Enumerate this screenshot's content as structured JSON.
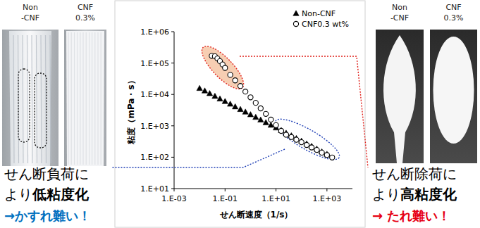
{
  "chart_data": {
    "type": "scatter",
    "xlabel": "せん断速度（1/s）",
    "ylabel": "粘度（mPa・s）",
    "log": true,
    "grid": false,
    "legend": "upper right",
    "xlim": [
      0.001,
      10000
    ],
    "ylim": [
      10,
      1000000
    ],
    "xticks": [
      {
        "value": 0.001,
        "label": "1.E-03"
      },
      {
        "value": 0.1,
        "label": "1.E-01"
      },
      {
        "value": 10,
        "label": "1.E+01"
      },
      {
        "value": 1000,
        "label": "1.E+03"
      }
    ],
    "yticks": [
      {
        "value": 10,
        "label": "1.E+01"
      },
      {
        "value": 100,
        "label": "1.E+02"
      },
      {
        "value": 1000,
        "label": "1.E+03"
      },
      {
        "value": 10000,
        "label": "1.E+04"
      },
      {
        "value": 100000,
        "label": "1.E+05"
      },
      {
        "value": 1000000,
        "label": "1.E+06"
      }
    ],
    "series": [
      {
        "name": "Non-CNF",
        "color": "#000000",
        "marker": "triangle",
        "x": [
          0.01,
          0.016,
          0.025,
          0.04,
          0.063,
          0.1,
          0.16,
          0.25,
          0.4,
          0.63,
          1,
          1.6,
          2.5,
          4,
          6.3,
          10,
          16,
          25,
          40,
          63,
          100,
          160,
          250,
          400,
          630,
          1000
        ],
        "values": [
          15800,
          13100,
          10800,
          8870,
          7310,
          6030,
          4970,
          4090,
          3370,
          2780,
          2290,
          1890,
          1560,
          1280,
          1060,
          870,
          720,
          590,
          490,
          400,
          330,
          270,
          225,
          185,
          150,
          126
        ]
      },
      {
        "name": "CNF0.3 wt%",
        "color": "#000000",
        "marker": "open-circle",
        "x": [
          0.03,
          0.04,
          0.05,
          0.063,
          0.08,
          0.1,
          0.16,
          0.25,
          0.4,
          0.63,
          1,
          1.6,
          2.5,
          4,
          6.3,
          10,
          16,
          25,
          40,
          63,
          100,
          160,
          250,
          400,
          630,
          1000,
          1600
        ],
        "values": [
          170000,
          165000,
          140000,
          115000,
          90000,
          70000,
          42000,
          28000,
          18600,
          12300,
          8100,
          5400,
          3600,
          2400,
          1580,
          1050,
          690,
          520,
          440,
          360,
          300,
          245,
          205,
          170,
          140,
          118,
          98
        ]
      }
    ]
  },
  "photos_left": [
    {
      "label": [
        "Non",
        "-CNF"
      ]
    },
    {
      "label": [
        "CNF",
        "0.3%"
      ]
    }
  ],
  "photos_right": [
    {
      "label": [
        "Non",
        "-CNF"
      ]
    },
    {
      "label": [
        "CNF",
        "0.3%"
      ]
    }
  ],
  "caption_left": {
    "line1": "せん断負荷に",
    "line2": "より",
    "emphasis": "低粘度化",
    "conclusion": "→かすれ難い！",
    "color": "#0070c0"
  },
  "caption_right": {
    "line1": "せん断除荷に",
    "line2": "より",
    "emphasis": "高粘度化",
    "conclusion": "→ たれ難い！",
    "color": "#e60012"
  }
}
